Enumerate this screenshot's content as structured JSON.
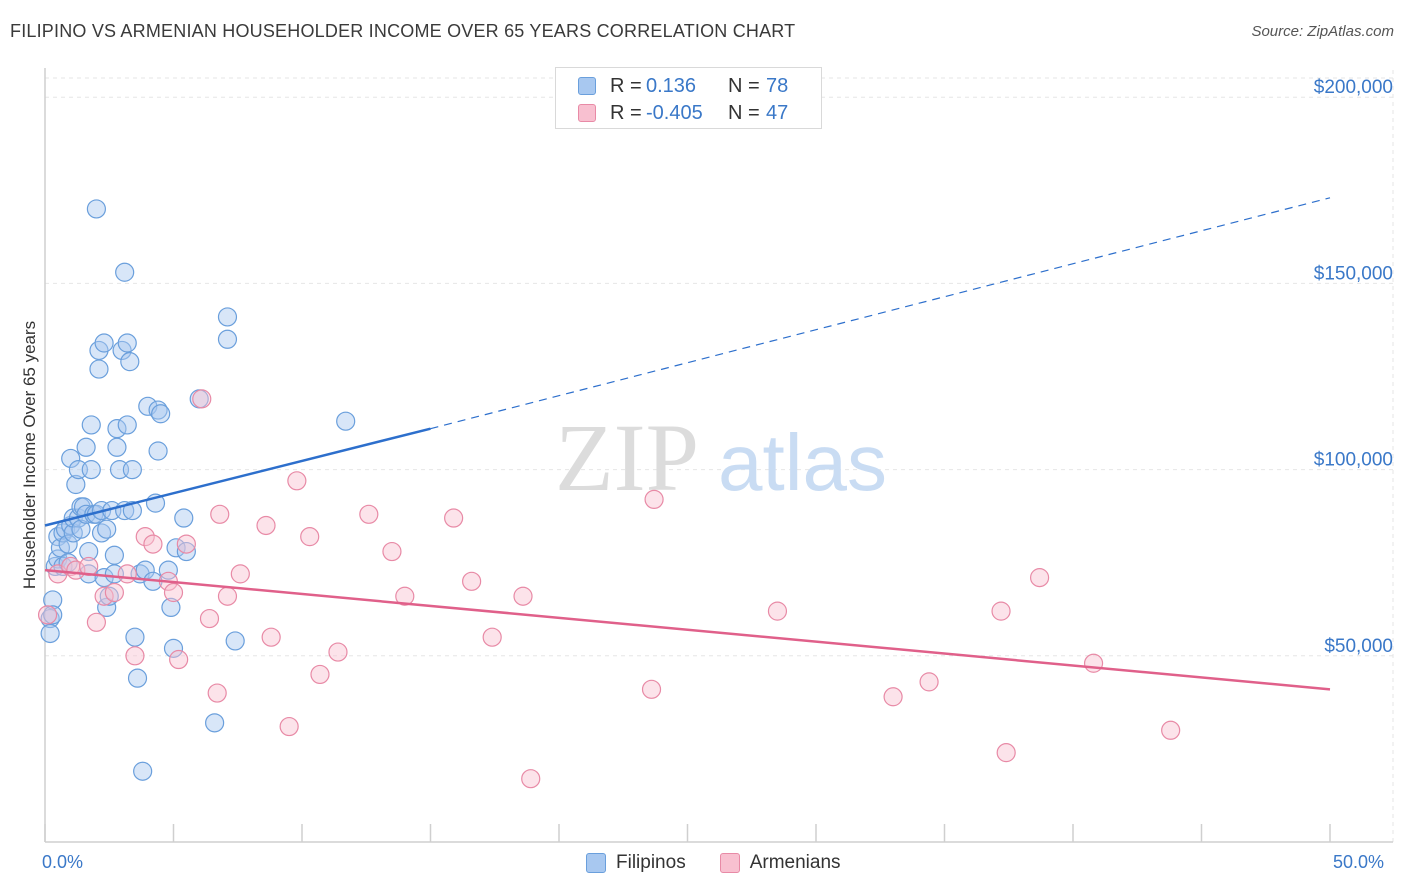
{
  "title": "FILIPINO VS ARMENIAN HOUSEHOLDER INCOME OVER 65 YEARS CORRELATION CHART",
  "source": "Source: ZipAtlas.com",
  "watermark": {
    "zip": "ZIP",
    "atlas": "atlas"
  },
  "legend": {
    "rows": [
      {
        "r_label": "R =",
        "r_value": "0.136",
        "n_label": "N =",
        "n_value": "78",
        "color": "#a8c8f0",
        "border": "#6a9fdc"
      },
      {
        "r_label": "R =",
        "r_value": "-0.405",
        "n_label": "N =",
        "n_value": "47",
        "color": "#f8c0d0",
        "border": "#e88aa6"
      }
    ]
  },
  "bottom_legend": [
    {
      "label": "Filipinos",
      "color": "#a8c8f0",
      "border": "#6a9fdc"
    },
    {
      "label": "Armenians",
      "color": "#f8c0d0",
      "border": "#e88aa6"
    }
  ],
  "chart_data": {
    "type": "scatter",
    "ylabel": "Householder Income Over 65 years",
    "x_tick_labels": [
      "0.0%",
      "50.0%"
    ],
    "xlim": [
      0,
      50
    ],
    "ylim": [
      0,
      210000
    ],
    "y_ticks": [
      {
        "value": 50000,
        "label": "$50,000"
      },
      {
        "value": 100000,
        "label": "$100,000"
      },
      {
        "value": 150000,
        "label": "$150,000"
      },
      {
        "value": 200000,
        "label": "$200,000"
      }
    ],
    "grid": true,
    "series": [
      {
        "name": "Filipinos",
        "color": "#6a9fdc",
        "fill": "#a8c8f0",
        "trend": {
          "x0": 0,
          "y0": 85000,
          "x1": 15,
          "y1": 111000,
          "dash_to_x": 50,
          "dash_to_y": 173000,
          "color": "#2d6fcc"
        },
        "points": [
          [
            0.2,
            60000
          ],
          [
            0.2,
            56000
          ],
          [
            0.3,
            65000
          ],
          [
            0.3,
            61000
          ],
          [
            0.4,
            74000
          ],
          [
            0.5,
            76000
          ],
          [
            0.5,
            82000
          ],
          [
            0.6,
            79000
          ],
          [
            0.7,
            74000
          ],
          [
            0.7,
            83000
          ],
          [
            0.8,
            84000
          ],
          [
            0.9,
            75000
          ],
          [
            0.9,
            80000
          ],
          [
            1.0,
            85000
          ],
          [
            1.0,
            103000
          ],
          [
            1.1,
            83000
          ],
          [
            1.1,
            87000
          ],
          [
            1.2,
            96000
          ],
          [
            1.3,
            87000
          ],
          [
            1.3,
            100000
          ],
          [
            1.4,
            84000
          ],
          [
            1.4,
            90000
          ],
          [
            1.5,
            90000
          ],
          [
            1.6,
            106000
          ],
          [
            1.6,
            88000
          ],
          [
            1.7,
            78000
          ],
          [
            1.7,
            72000
          ],
          [
            1.8,
            100000
          ],
          [
            1.8,
            112000
          ],
          [
            1.9,
            88000
          ],
          [
            2.0,
            170000
          ],
          [
            2.0,
            88000
          ],
          [
            2.1,
            132000
          ],
          [
            2.1,
            127000
          ],
          [
            2.2,
            89000
          ],
          [
            2.2,
            83000
          ],
          [
            2.3,
            134000
          ],
          [
            2.3,
            71000
          ],
          [
            2.4,
            84000
          ],
          [
            2.4,
            63000
          ],
          [
            2.5,
            66000
          ],
          [
            2.6,
            89000
          ],
          [
            2.7,
            72000
          ],
          [
            2.7,
            77000
          ],
          [
            2.8,
            106000
          ],
          [
            2.8,
            111000
          ],
          [
            2.9,
            100000
          ],
          [
            3.0,
            132000
          ],
          [
            3.1,
            153000
          ],
          [
            3.1,
            89000
          ],
          [
            3.2,
            112000
          ],
          [
            3.2,
            134000
          ],
          [
            3.3,
            129000
          ],
          [
            3.4,
            100000
          ],
          [
            3.4,
            89000
          ],
          [
            3.5,
            55000
          ],
          [
            3.6,
            44000
          ],
          [
            3.7,
            72000
          ],
          [
            3.8,
            19000
          ],
          [
            3.9,
            73000
          ],
          [
            4.0,
            117000
          ],
          [
            4.2,
            70000
          ],
          [
            4.3,
            91000
          ],
          [
            4.4,
            105000
          ],
          [
            4.4,
            116000
          ],
          [
            4.5,
            115000
          ],
          [
            4.8,
            73000
          ],
          [
            4.9,
            63000
          ],
          [
            5.0,
            52000
          ],
          [
            5.1,
            79000
          ],
          [
            5.4,
            87000
          ],
          [
            5.5,
            78000
          ],
          [
            6.0,
            119000
          ],
          [
            6.6,
            32000
          ],
          [
            7.1,
            141000
          ],
          [
            7.1,
            135000
          ],
          [
            7.4,
            54000
          ],
          [
            11.7,
            113000
          ]
        ]
      },
      {
        "name": "Armenians",
        "color": "#e88aa6",
        "fill": "#f8c0d0",
        "trend": {
          "x0": 0,
          "y0": 73000,
          "x1": 50,
          "y1": 41000,
          "color": "#e0608a"
        },
        "points": [
          [
            0.1,
            61000
          ],
          [
            0.5,
            72000
          ],
          [
            1.0,
            74000
          ],
          [
            1.2,
            73000
          ],
          [
            1.7,
            74000
          ],
          [
            2.0,
            59000
          ],
          [
            2.3,
            66000
          ],
          [
            2.7,
            67000
          ],
          [
            3.2,
            72000
          ],
          [
            3.5,
            50000
          ],
          [
            3.9,
            82000
          ],
          [
            4.2,
            80000
          ],
          [
            4.8,
            70000
          ],
          [
            5.0,
            67000
          ],
          [
            5.2,
            49000
          ],
          [
            5.5,
            80000
          ],
          [
            6.1,
            119000
          ],
          [
            6.4,
            60000
          ],
          [
            6.7,
            40000
          ],
          [
            6.8,
            88000
          ],
          [
            7.1,
            66000
          ],
          [
            7.6,
            72000
          ],
          [
            8.6,
            85000
          ],
          [
            8.8,
            55000
          ],
          [
            9.5,
            31000
          ],
          [
            9.8,
            97000
          ],
          [
            10.3,
            82000
          ],
          [
            10.7,
            45000
          ],
          [
            11.4,
            51000
          ],
          [
            12.6,
            88000
          ],
          [
            13.5,
            78000
          ],
          [
            14.0,
            66000
          ],
          [
            15.9,
            87000
          ],
          [
            16.6,
            70000
          ],
          [
            17.4,
            55000
          ],
          [
            18.6,
            66000
          ],
          [
            18.9,
            17000
          ],
          [
            23.6,
            41000
          ],
          [
            23.7,
            92000
          ],
          [
            28.5,
            62000
          ],
          [
            33.0,
            39000
          ],
          [
            34.4,
            43000
          ],
          [
            37.4,
            24000
          ],
          [
            37.2,
            62000
          ],
          [
            38.7,
            71000
          ],
          [
            40.8,
            48000
          ],
          [
            43.8,
            30000
          ]
        ]
      }
    ]
  }
}
